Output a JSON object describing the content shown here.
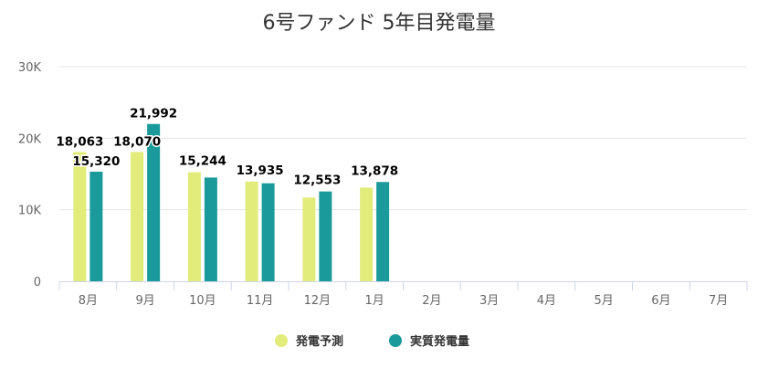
{
  "chart_data": {
    "type": "bar",
    "title": "6号ファンド 5年目発電量",
    "categories": [
      "8月",
      "9月",
      "10月",
      "11月",
      "12月",
      "1月",
      "2月",
      "3月",
      "4月",
      "5月",
      "6月",
      "7月"
    ],
    "series": [
      {
        "name": "発電予測",
        "color": "#e1ec7a",
        "values": [
          18063,
          18070,
          15244,
          13935,
          11700,
          13100,
          null,
          null,
          null,
          null,
          null,
          null
        ]
      },
      {
        "name": "実質発電量",
        "color": "#1a9a9a",
        "values": [
          15320,
          21992,
          14500,
          13700,
          12553,
          13878,
          null,
          null,
          null,
          null,
          null,
          null
        ]
      }
    ],
    "data_labels": [
      {
        "category": "8月",
        "texts": [
          "18,063",
          "15,320"
        ]
      },
      {
        "category": "9月",
        "texts": [
          "18,070",
          "21,992"
        ]
      },
      {
        "category": "10月",
        "texts": [
          "15,244"
        ]
      },
      {
        "category": "11月",
        "texts": [
          "13,935"
        ]
      },
      {
        "category": "12月",
        "texts": [
          "12,553"
        ]
      },
      {
        "category": "1月",
        "texts": [
          "13,878"
        ]
      }
    ],
    "yticks": [
      "0",
      "10K",
      "20K",
      "30K"
    ],
    "ylim": [
      0,
      30000
    ],
    "grid": true,
    "legend_position": "bottom-center"
  }
}
